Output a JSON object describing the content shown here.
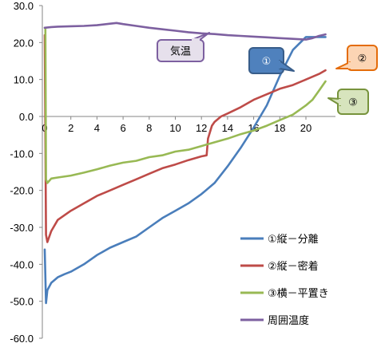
{
  "chart_data": {
    "type": "line",
    "title": "",
    "xlabel": "",
    "ylabel": "",
    "xlim": [
      0,
      21.5
    ],
    "ylim": [
      -60,
      30
    ],
    "x_ticks": [
      "0",
      "2",
      "4",
      "6",
      "8",
      "10",
      "12",
      "14",
      "16",
      "18",
      "20"
    ],
    "y_ticks": [
      "30.0",
      "20.0",
      "10.0",
      "0.0",
      "-10.0",
      "-20.0",
      "-30.0",
      "-40.0",
      "-50.0",
      "-60.0"
    ],
    "grid": false,
    "legend": "right",
    "series": [
      {
        "name": "①縦－分離",
        "color": "#4a7ebb",
        "x": [
          0,
          0.1,
          0.2,
          0.5,
          1,
          1.5,
          2,
          3,
          4,
          5,
          6,
          7,
          8,
          9,
          10,
          11,
          12,
          13,
          14,
          15,
          16,
          17,
          18,
          19,
          20,
          21,
          21.5
        ],
        "y": [
          -36,
          -50.5,
          -47,
          -45,
          -43.5,
          -42.7,
          -42,
          -40,
          -37.5,
          -35.5,
          -34,
          -32.5,
          -30,
          -27.5,
          -25.5,
          -23.5,
          -21,
          -18,
          -13.5,
          -8.5,
          -3,
          3,
          11,
          18,
          21.5,
          21.5,
          21.5
        ]
      },
      {
        "name": "②縦－密着",
        "color": "#be4b48",
        "x": [
          0,
          0.1,
          0.2,
          0.5,
          1,
          2,
          3,
          4,
          5,
          6,
          7,
          8,
          9,
          10,
          11,
          12,
          12.4,
          12.5,
          12.8,
          13,
          13.5,
          14,
          15,
          16,
          17,
          18,
          19,
          20,
          21,
          21.5
        ],
        "y": [
          22,
          -32,
          -34,
          -31,
          -28,
          -25.5,
          -23.5,
          -21.5,
          -20,
          -18.5,
          -17,
          -15.5,
          -14,
          -13,
          -11.8,
          -10.8,
          -10.5,
          -6,
          -2.5,
          -1.5,
          0,
          0.8,
          2.5,
          4.5,
          6,
          7.5,
          8.5,
          10,
          11.5,
          12.5
        ]
      },
      {
        "name": "③横－平置き",
        "color": "#98b954",
        "x": [
          0,
          0.05,
          0.1,
          0.2,
          0.5,
          1,
          2,
          3,
          4,
          5,
          6,
          7,
          8,
          9,
          10,
          11,
          12,
          13,
          14,
          15,
          16,
          17,
          18,
          19,
          20,
          20.5,
          21,
          21.5
        ],
        "y": [
          24,
          24,
          -17,
          -18,
          -16.8,
          -16.5,
          -16,
          -15.2,
          -14.3,
          -13.3,
          -12.5,
          -12,
          -11,
          -10.5,
          -9.5,
          -9,
          -8,
          -7,
          -6,
          -4.8,
          -3.8,
          -2.5,
          -1,
          0.5,
          3,
          4.5,
          7,
          9.5
        ]
      },
      {
        "name": "周囲温度",
        "color": "#7d60a0",
        "x": [
          0,
          0.5,
          1,
          2,
          3,
          4,
          5,
          5.5,
          6,
          7,
          8,
          9,
          10,
          11,
          12,
          13,
          14,
          15,
          16,
          17,
          18,
          19,
          20,
          20.5,
          21,
          21.5
        ],
        "y": [
          24,
          24.2,
          24.3,
          24.4,
          24.5,
          24.7,
          25.1,
          25.3,
          25,
          24.5,
          24,
          23.6,
          23.2,
          22.8,
          22.5,
          22.3,
          22,
          21.8,
          21.6,
          21.4,
          21.2,
          21,
          20.8,
          21.2,
          21.8,
          22.2
        ]
      }
    ],
    "callouts": [
      {
        "text": "気温",
        "series_index": 3
      },
      {
        "text": "①",
        "series_index": 0
      },
      {
        "text": "②",
        "series_index": 1
      },
      {
        "text": "③",
        "series_index": 2
      }
    ]
  }
}
